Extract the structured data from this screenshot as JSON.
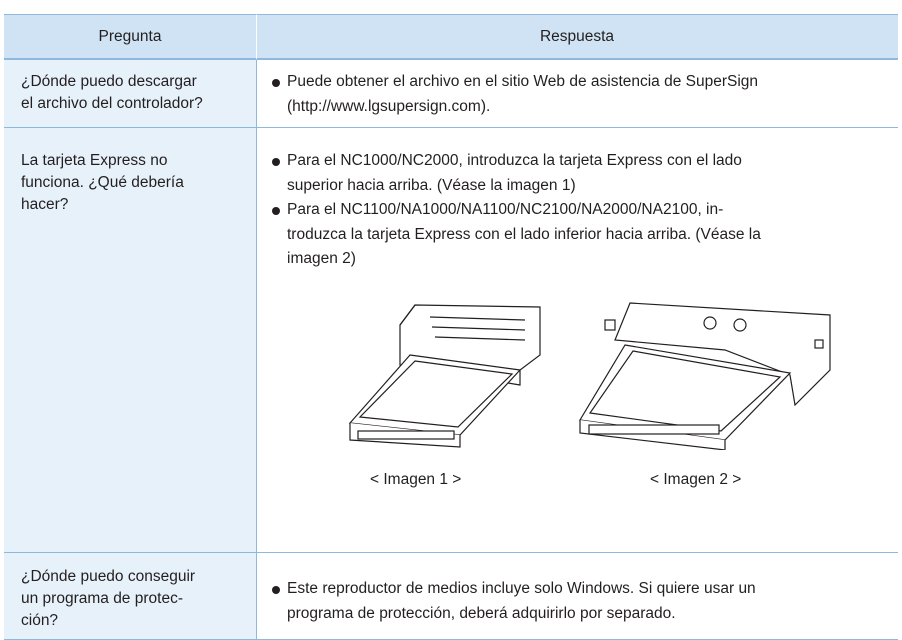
{
  "table": {
    "header": [
      "Pregunta",
      "Respuesta"
    ],
    "rows": [
      {
        "question": [
          "¿Dónde puedo descargar",
          "el archivo del controlador?"
        ],
        "answer": [
          [
            "Puede obtener el archivo en el sitio Web de asistencia de SuperSign",
            "(http://www.lgsupersign.com)."
          ]
        ]
      },
      {
        "question": [
          "La tarjeta Express no",
          "funciona. ¿Qué debería",
          "hacer?"
        ],
        "answer": [
          [
            "Para el NC1000/NC2000, introduzca la tarjeta Express con el lado",
            "superior hacia arriba. (Véase la imagen 1)"
          ],
          [
            "Para el NC1100/NA1000/NA1100/NC2100/NA2000/NA2100, in-",
            "troduzca la tarjeta Express con el lado inferior hacia arriba. (Véase la",
            "imagen 2)"
          ]
        ],
        "images": [
          "< Imagen 1 >",
          "< Imagen 2 >"
        ]
      },
      {
        "question": [
          "¿Dónde puedo conseguir",
          "un programa de protec-",
          "ción?"
        ],
        "answer": [
          [
            "Este reproductor de medios incluye solo Windows. Si quiere usar un",
            "programa de protección, deberá adquirirlo por separado."
          ]
        ]
      }
    ]
  }
}
